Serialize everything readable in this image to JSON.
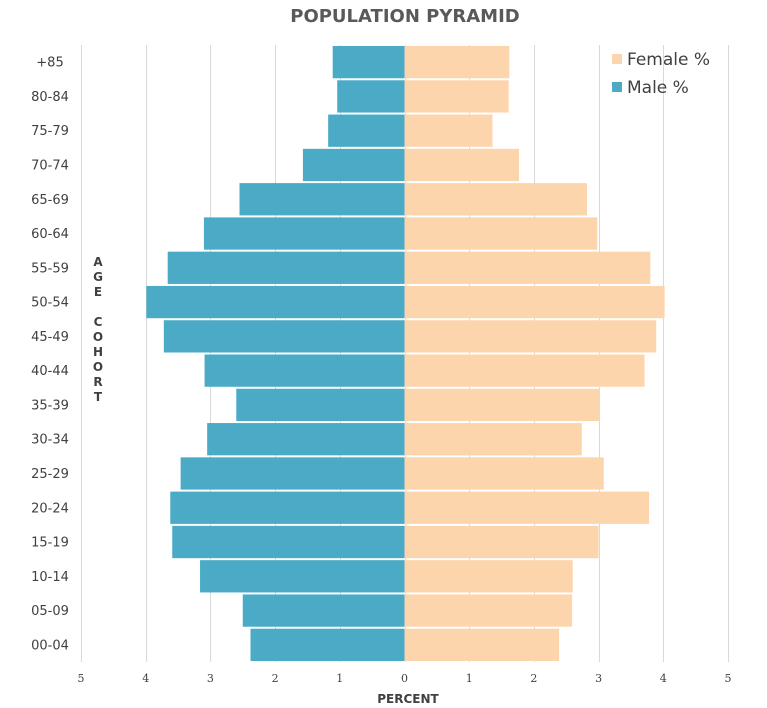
{
  "chart_data": {
    "type": "bar",
    "orientation": "horizontal",
    "title": "POPULATION PYRAMID",
    "xlabel": "PERCENT",
    "ylabel": "AGE COHORT",
    "xlim": [
      -5,
      5
    ],
    "xticks": [
      -5,
      -4,
      -3,
      -2,
      -1,
      0,
      1,
      2,
      3,
      4,
      5
    ],
    "xtick_labels": [
      "5",
      "4",
      "3",
      "2",
      "1",
      "0",
      "1",
      "2",
      "3",
      "4",
      "5"
    ],
    "grid": true,
    "legend_position": "top-right",
    "categories": [
      "+85",
      "80-84",
      "75-79",
      "70-74",
      "65-69",
      "60-64",
      "55-59",
      "50-54",
      "45-49",
      "40-44",
      "35-39",
      "30-34",
      "25-29",
      "20-24",
      "15-19",
      "10-14",
      "05-09",
      "00-04"
    ],
    "series": [
      {
        "name": "Female %",
        "color": "#fdd5ad",
        "values": [
          1.62,
          1.61,
          1.36,
          1.77,
          2.82,
          2.98,
          3.8,
          4.02,
          3.89,
          3.71,
          3.02,
          2.74,
          3.08,
          3.78,
          3.0,
          2.6,
          2.59,
          2.39
        ]
      },
      {
        "name": "Male %",
        "color": "#4babc6",
        "values": [
          1.11,
          1.04,
          1.18,
          1.57,
          2.55,
          3.1,
          3.66,
          3.99,
          3.72,
          3.09,
          2.6,
          3.05,
          3.46,
          3.62,
          3.59,
          3.16,
          2.5,
          2.38
        ]
      }
    ]
  }
}
